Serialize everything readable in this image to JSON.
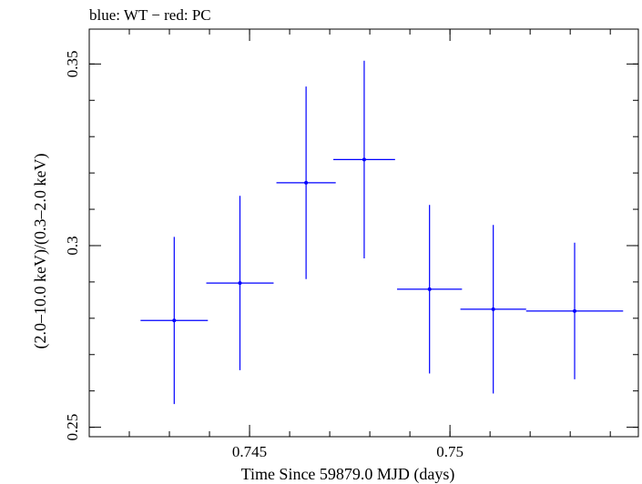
{
  "chart_data": {
    "type": "scatter",
    "title": "blue: WT − red: PC",
    "xlabel": "Time Since 59879.0 MJD (days)",
    "ylabel": "(2.0–10.0 keV)/(0.3–2.0 keV)",
    "xlim": [
      0.741,
      0.7547
    ],
    "ylim": [
      0.2474,
      0.3596
    ],
    "x_ticks": [
      {
        "value": 0.745,
        "label": "0.745"
      },
      {
        "value": 0.75,
        "label": "0.75"
      }
    ],
    "y_ticks": [
      {
        "value": 0.25,
        "label": "0.25"
      },
      {
        "value": 0.3,
        "label": "0.3"
      },
      {
        "value": 0.35,
        "label": "0.35"
      }
    ],
    "x_minor_step": 0.001,
    "y_minor_step": 0.01,
    "grid": false,
    "series": [
      {
        "name": "WT",
        "color": "#0000ff",
        "points": [
          {
            "x": 0.74312,
            "xerr": 0.00084,
            "y": 0.2794,
            "yerr_low": 0.023,
            "yerr_high": 0.023
          },
          {
            "x": 0.74476,
            "xerr": 0.00084,
            "y": 0.2897,
            "yerr_low": 0.024,
            "yerr_high": 0.024
          },
          {
            "x": 0.74641,
            "xerr": 0.00074,
            "y": 0.3173,
            "yerr_low": 0.0265,
            "yerr_high": 0.0265
          },
          {
            "x": 0.74786,
            "xerr": 0.00077,
            "y": 0.3237,
            "yerr_low": 0.0272,
            "yerr_high": 0.0272
          },
          {
            "x": 0.74949,
            "xerr": 0.00081,
            "y": 0.288,
            "yerr_low": 0.0232,
            "yerr_high": 0.0232
          },
          {
            "x": 0.75108,
            "xerr": 0.00082,
            "y": 0.2825,
            "yerr_low": 0.0232,
            "yerr_high": 0.0232
          },
          {
            "x": 0.75311,
            "xerr": 0.00121,
            "y": 0.282,
            "yerr_low": 0.0188,
            "yerr_high": 0.0188
          }
        ]
      }
    ]
  }
}
